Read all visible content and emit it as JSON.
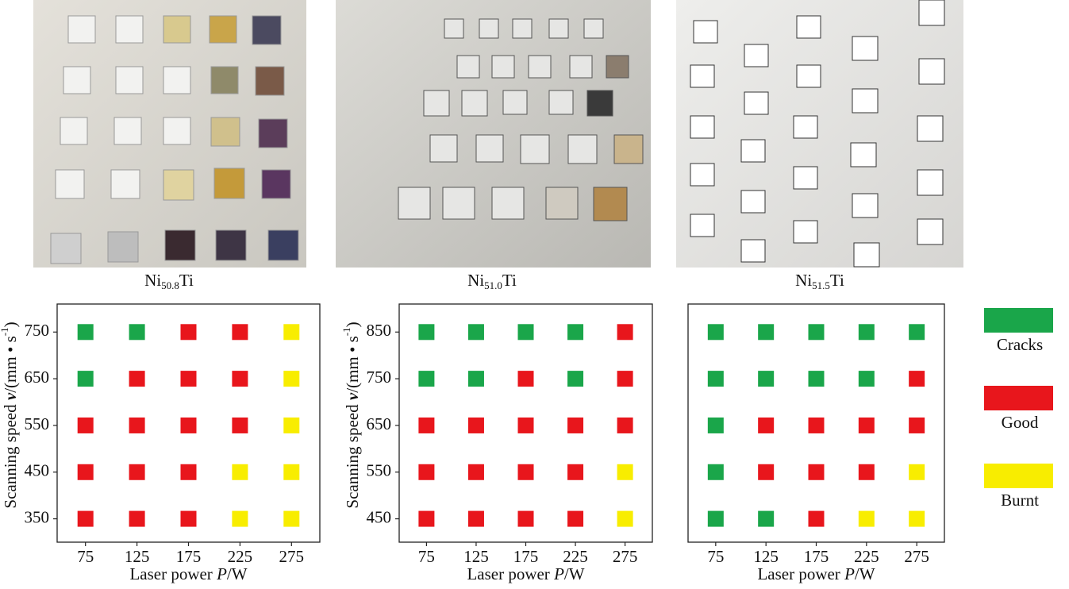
{
  "legend": [
    {
      "name": "Cracks",
      "color": "#1aa64a"
    },
    {
      "name": "Good",
      "color": "#e8161c"
    },
    {
      "name": "Burnt",
      "color": "#f8ed00"
    }
  ],
  "chart_data": [
    {
      "type": "scatter",
      "title_parts": [
        "Ni",
        "50.8",
        "Ti"
      ],
      "x_label_parts": [
        "Laser power ",
        "P",
        "/W"
      ],
      "y_label_parts": [
        "Scanning speed ",
        "v",
        "/(mm • s",
        "-1",
        ")"
      ],
      "xlim": [
        47.5,
        302.5
      ],
      "ylim": [
        300,
        810
      ],
      "xticks": [
        75,
        125,
        175,
        225,
        275
      ],
      "yticks": [
        350,
        450,
        550,
        650,
        750
      ],
      "series": [
        {
          "x": [
            75,
            125,
            75
          ],
          "values": [
            750,
            750,
            650
          ]
        },
        {
          "x": [
            175,
            225,
            125,
            175,
            225,
            75,
            125,
            175,
            225,
            75,
            125,
            175,
            75,
            125,
            175
          ],
          "values": [
            750,
            750,
            650,
            650,
            650,
            550,
            550,
            550,
            550,
            450,
            450,
            450,
            350,
            350,
            350
          ]
        },
        {
          "x": [
            275,
            275,
            275,
            225,
            275,
            225,
            275
          ],
          "values": [
            750,
            650,
            550,
            450,
            450,
            350,
            350
          ]
        }
      ]
    },
    {
      "type": "scatter",
      "title_parts": [
        "Ni",
        "51.0",
        "Ti"
      ],
      "x_label_parts": [
        "Laser power ",
        "P",
        "/W"
      ],
      "y_label_parts": [
        "Scanning speed ",
        "v",
        "/(mm • s",
        "-1",
        ")"
      ],
      "xlim": [
        47.5,
        302.5
      ],
      "ylim": [
        400,
        910
      ],
      "xticks": [
        75,
        125,
        175,
        225,
        275
      ],
      "yticks": [
        450,
        550,
        650,
        750,
        850
      ],
      "series": [
        {
          "x": [
            75,
            125,
            175,
            225,
            75,
            125,
            225
          ],
          "values": [
            850,
            850,
            850,
            850,
            750,
            750,
            750
          ]
        },
        {
          "x": [
            275,
            175,
            275,
            75,
            125,
            175,
            225,
            275,
            75,
            125,
            175,
            225,
            75,
            125,
            175,
            225
          ],
          "values": [
            850,
            750,
            750,
            650,
            650,
            650,
            650,
            650,
            550,
            550,
            550,
            550,
            450,
            450,
            450,
            450
          ]
        },
        {
          "x": [
            275,
            275
          ],
          "values": [
            550,
            450
          ]
        }
      ]
    },
    {
      "type": "scatter",
      "title_parts": [
        "Ni",
        "51.5",
        "Ti"
      ],
      "x_label_parts": [
        "Laser power ",
        "P",
        "/W"
      ],
      "xlim": [
        47.5,
        302.5
      ],
      "ylim": [
        400,
        910
      ],
      "xticks": [
        75,
        125,
        175,
        225,
        275
      ],
      "series": [
        {
          "x": [
            75,
            125,
            175,
            225,
            275,
            75,
            125,
            175,
            225,
            75,
            75,
            75,
            125
          ],
          "values": [
            850,
            850,
            850,
            850,
            850,
            750,
            750,
            750,
            750,
            650,
            550,
            450,
            450
          ]
        },
        {
          "x": [
            275,
            125,
            175,
            225,
            275,
            125,
            175,
            225,
            175
          ],
          "values": [
            750,
            650,
            650,
            650,
            650,
            550,
            550,
            550,
            450
          ]
        },
        {
          "x": [
            275,
            225,
            275
          ],
          "values": [
            550,
            450,
            450
          ]
        }
      ]
    }
  ]
}
